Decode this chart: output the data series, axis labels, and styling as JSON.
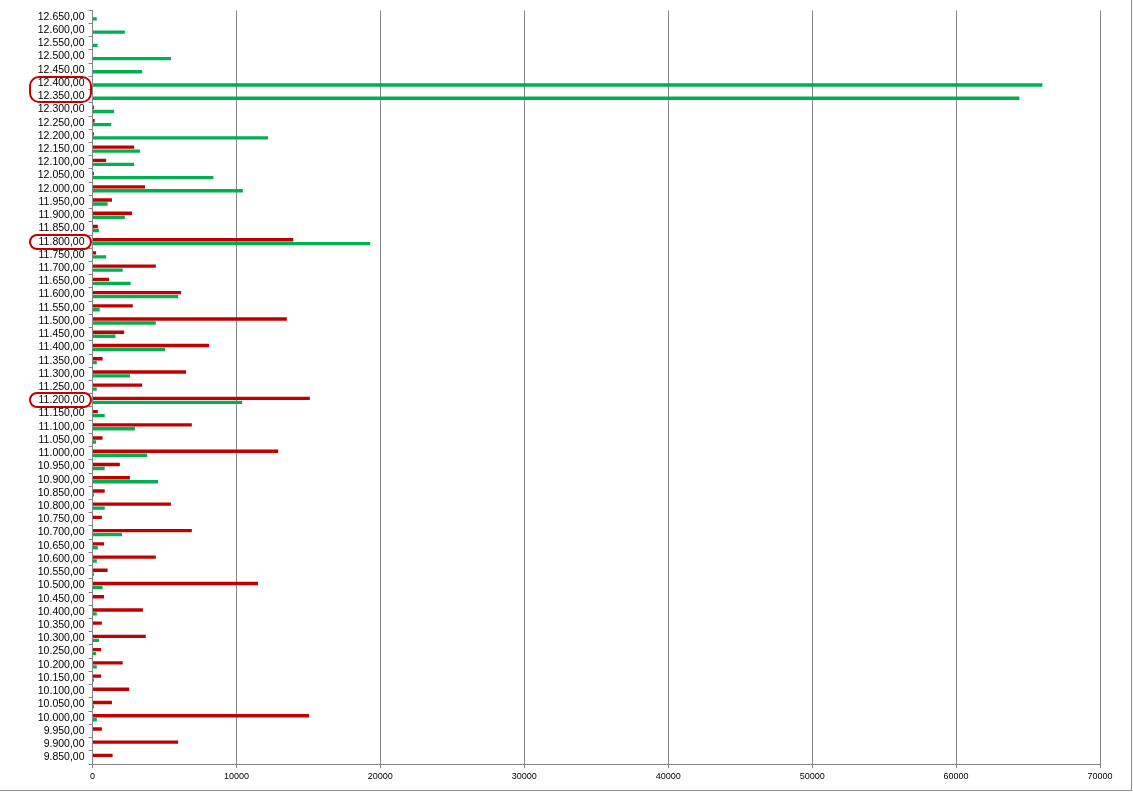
{
  "chart_data": {
    "type": "bar",
    "orientation": "horizontal",
    "categories": [
      "12.650,00",
      "12.600,00",
      "12.550,00",
      "12.500,00",
      "12.450,00",
      "12.400,00",
      "12.350,00",
      "12.300,00",
      "12.250,00",
      "12.200,00",
      "12.150,00",
      "12.100,00",
      "12.050,00",
      "12.000,00",
      "11.950,00",
      "11.900,00",
      "11.850,00",
      "11.800,00",
      "11.750,00",
      "11.700,00",
      "11.650,00",
      "11.600,00",
      "11.550,00",
      "11.500,00",
      "11.450,00",
      "11.400,00",
      "11.350,00",
      "11.300,00",
      "11.250,00",
      "11.200,00",
      "11.150,00",
      "11.100,00",
      "11.050,00",
      "11.000,00",
      "10.950,00",
      "10.900,00",
      "10.850,00",
      "10.800,00",
      "10.750,00",
      "10.700,00",
      "10.650,00",
      "10.600,00",
      "10.550,00",
      "10.500,00",
      "10.450,00",
      "10.400,00",
      "10.350,00",
      "10.300,00",
      "10.250,00",
      "10.200,00",
      "10.150,00",
      "10.100,00",
      "10.050,00",
      "10.000,00",
      "9.950,00",
      "9.900,00",
      "9.850,00"
    ],
    "series": [
      {
        "color": "#c00000",
        "values": [
          null,
          null,
          null,
          null,
          null,
          null,
          null,
          100,
          150,
          100,
          2900,
          950,
          100,
          3650,
          1350,
          2750,
          370,
          13950,
          250,
          4400,
          1150,
          6150,
          2800,
          13500,
          2200,
          8100,
          700,
          6500,
          3450,
          15100,
          370,
          6900,
          700,
          12900,
          1900,
          2600,
          850,
          5450,
          650,
          6900,
          800,
          4400,
          1050,
          11500,
          800,
          3500,
          650,
          3700,
          600,
          2100,
          600,
          2550,
          1350,
          15050,
          650,
          5950,
          1400
        ]
      },
      {
        "color": "#00b050",
        "values": [
          300,
          2250,
          350,
          5450,
          3450,
          66000,
          64400,
          1500,
          1300,
          12200,
          3300,
          2900,
          8400,
          10450,
          1050,
          2250,
          450,
          19300,
          950,
          2100,
          2650,
          5950,
          500,
          4400,
          1600,
          5050,
          300,
          2600,
          300,
          10400,
          850,
          2950,
          250,
          3800,
          850,
          4550,
          100,
          850,
          null,
          2050,
          370,
          300,
          100,
          700,
          null,
          300,
          null,
          450,
          250,
          300,
          100,
          null,
          100,
          300,
          null,
          null,
          null
        ]
      }
    ],
    "xlim": [
      0,
      70000
    ],
    "xticks": [
      0,
      10000,
      20000,
      30000,
      40000,
      50000,
      60000,
      70000
    ],
    "grid": "x"
  }
}
